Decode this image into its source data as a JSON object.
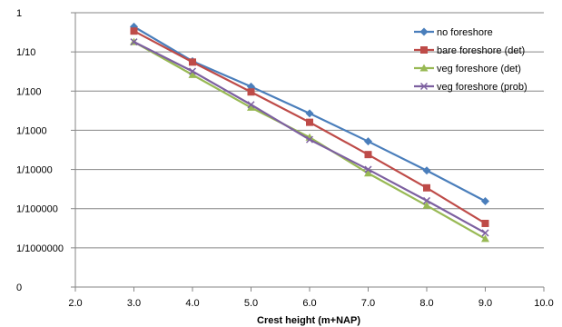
{
  "chart_data": {
    "type": "line",
    "title": "",
    "xlabel": "Crest height (m+NAP)",
    "ylabel": "",
    "xlim": [
      2.0,
      10.0
    ],
    "x_ticks": [
      "2.0",
      "3.0",
      "4.0",
      "5.0",
      "6.0",
      "7.0",
      "8.0",
      "9.0",
      "10.0"
    ],
    "y_scale": "log",
    "y_ticks": [
      {
        "value": 1,
        "label": "1"
      },
      {
        "value": 0.1,
        "label": "1/10"
      },
      {
        "value": 0.01,
        "label": "1/100"
      },
      {
        "value": 0.001,
        "label": "1/1000"
      },
      {
        "value": 0.0001,
        "label": "1/10000"
      },
      {
        "value": 1e-05,
        "label": "1/100000"
      },
      {
        "value": 1e-06,
        "label": "1/1000000"
      },
      {
        "value": 1e-07,
        "label": "0"
      }
    ],
    "grid": "horizontal",
    "legend_position": "top-right",
    "x": [
      3.0,
      4.0,
      5.0,
      6.0,
      7.0,
      8.0,
      9.0
    ],
    "series": [
      {
        "name": "no foreshore",
        "color": "#4a7ebb",
        "marker": "diamond",
        "values": [
          0.44,
          0.058,
          0.013,
          0.0027,
          0.00052,
          9.4e-05,
          1.55e-05
        ]
      },
      {
        "name": "bare foreshore (det)",
        "color": "#be4b48",
        "marker": "square",
        "values": [
          0.34,
          0.055,
          0.0095,
          0.0016,
          0.00024,
          3.4e-05,
          4.2e-06
        ]
      },
      {
        "name": "veg foreshore (det)",
        "color": "#98b954",
        "marker": "triangle",
        "values": [
          0.18,
          0.026,
          0.0038,
          0.00066,
          8e-05,
          1.2e-05,
          1.7e-06
        ]
      },
      {
        "name": "veg foreshore (prob)",
        "color": "#7d60a0",
        "marker": "x",
        "values": [
          0.18,
          0.032,
          0.0045,
          0.00058,
          0.0001,
          1.6e-05,
          2.4e-06
        ]
      }
    ]
  }
}
